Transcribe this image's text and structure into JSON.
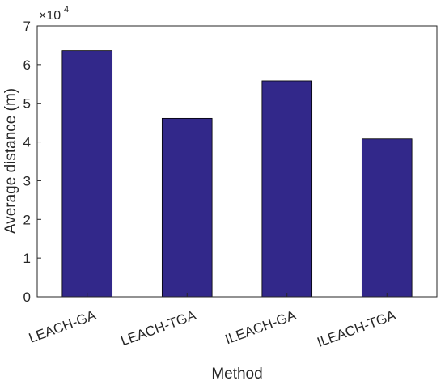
{
  "chart_data": {
    "type": "bar",
    "categories": [
      "LEACH-GA",
      "LEACH-TGA",
      "ILEACH-GA",
      "ILEACH-TGA"
    ],
    "values": [
      63600,
      46100,
      55800,
      40800
    ],
    "title": "",
    "xlabel": "Method",
    "ylabel": "Average distance (m)",
    "ylim": [
      0,
      70000
    ],
    "yticks": [
      0,
      1,
      2,
      3,
      4,
      5,
      6,
      7
    ],
    "yticks_scale": 10000,
    "exponent_base": "×10",
    "exponent_power": "4",
    "bar_color": "#32288a",
    "grid": false,
    "legend": "none"
  }
}
